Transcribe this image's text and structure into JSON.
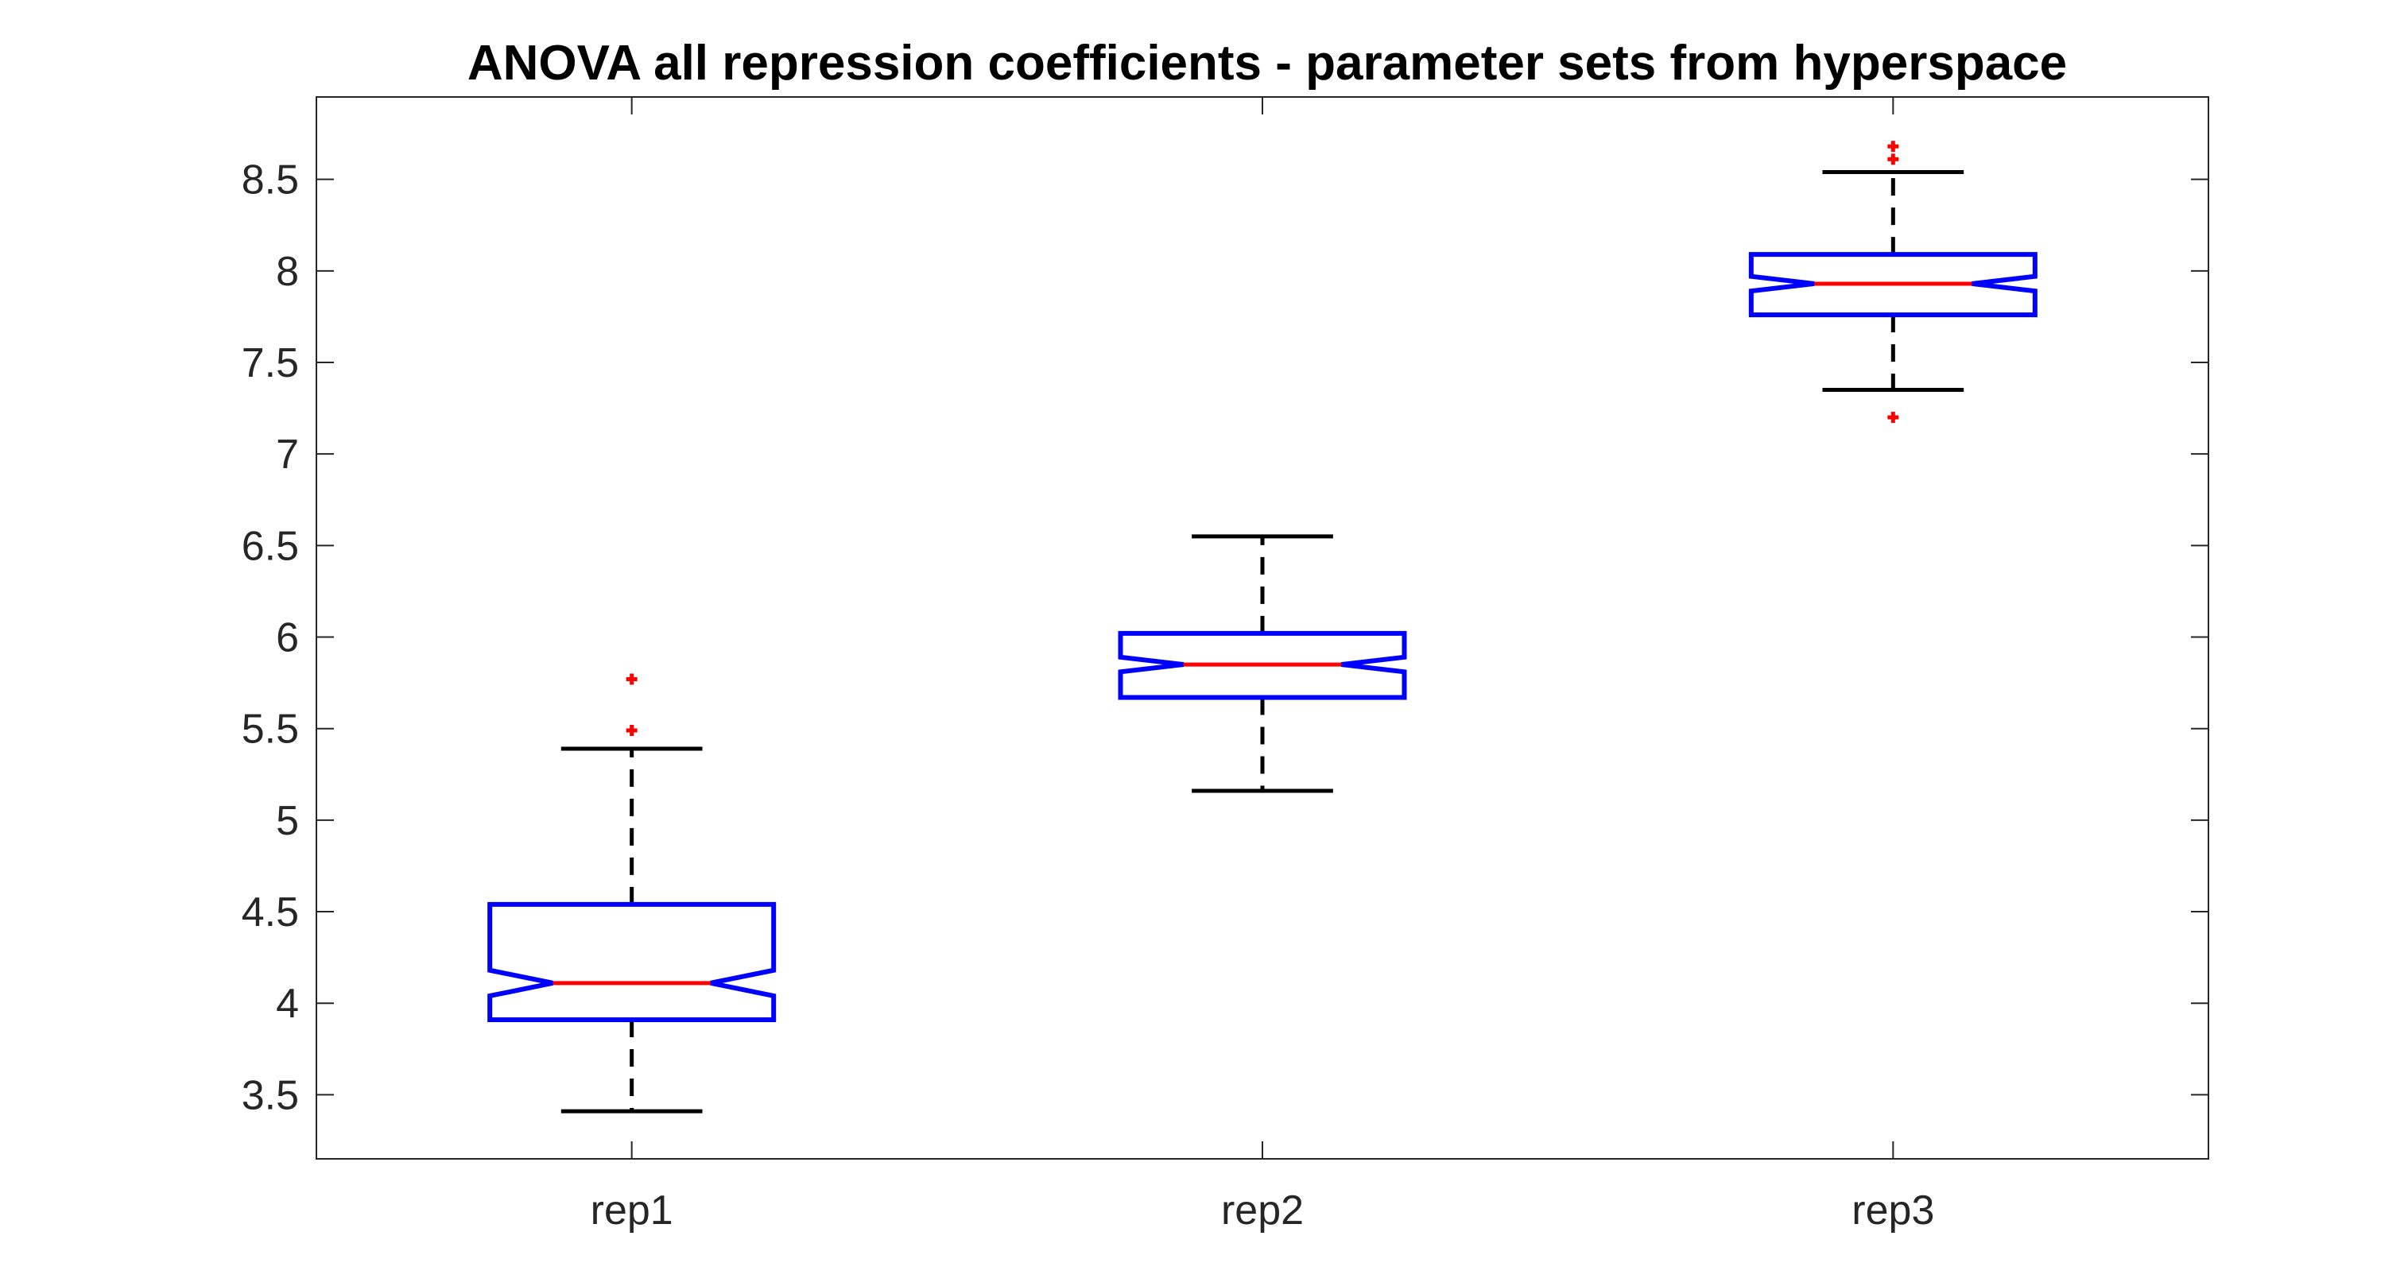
{
  "chart_data": {
    "type": "boxplot",
    "title": "ANOVA all repression coefficients - parameter sets from hyperspace",
    "xlabel": "",
    "ylabel": "",
    "categories": [
      "rep1",
      "rep2",
      "rep3"
    ],
    "ylim": [
      3.15,
      8.95
    ],
    "yticks": [
      3.5,
      4,
      4.5,
      5,
      5.5,
      6,
      6.5,
      7,
      7.5,
      8,
      8.5
    ],
    "ytick_labels": [
      "3.5",
      "4",
      "4.5",
      "5",
      "5.5",
      "6",
      "6.5",
      "7",
      "7.5",
      "8",
      "8.5"
    ],
    "notched": true,
    "grid": false,
    "boxes": [
      {
        "category": "rep1",
        "lower_whisker": 3.41,
        "q1": 3.91,
        "median": 4.11,
        "q3": 4.54,
        "upper_whisker": 5.39,
        "notch_low": 4.04,
        "notch_high": 4.18,
        "outliers": [
          5.49,
          5.77
        ]
      },
      {
        "category": "rep2",
        "lower_whisker": 5.16,
        "q1": 5.67,
        "median": 5.85,
        "q3": 6.02,
        "upper_whisker": 6.55,
        "notch_low": 5.81,
        "notch_high": 5.89,
        "outliers": []
      },
      {
        "category": "rep3",
        "lower_whisker": 7.35,
        "q1": 7.76,
        "median": 7.93,
        "q3": 8.09,
        "upper_whisker": 8.54,
        "notch_low": 7.89,
        "notch_high": 7.97,
        "outliers": [
          7.2,
          8.61,
          8.68
        ]
      }
    ],
    "colors": {
      "box": "#0000ff",
      "median": "#ff0000",
      "whisker": "#000000",
      "outlier": "#ff0000",
      "axes": "#262626"
    }
  }
}
